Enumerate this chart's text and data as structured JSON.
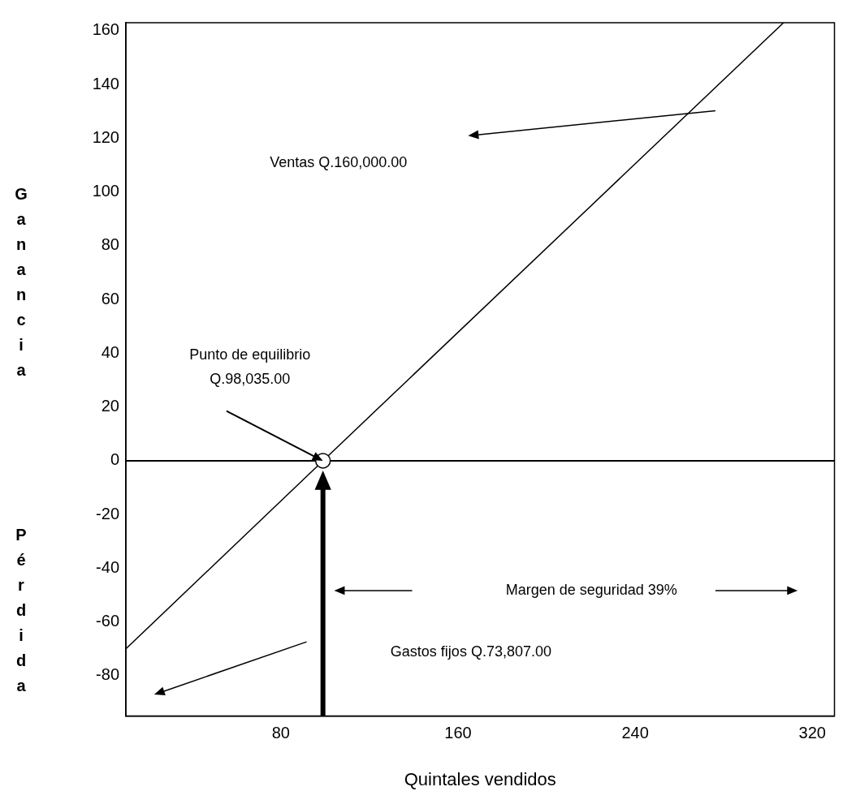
{
  "chart_data": {
    "type": "line",
    "xlabel": "Quintales vendidos",
    "ylabel": "Ganancia",
    "xlim": [
      10,
      330
    ],
    "xticks": [
      80,
      160,
      240,
      320
    ],
    "ylim": [
      -95,
      163
    ],
    "yticks": [
      -80,
      -60,
      -40,
      -20,
      0,
      20,
      40,
      60,
      80,
      100,
      120,
      140,
      160
    ],
    "grid": false,
    "legend": false,
    "series": [
      {
        "type": "line",
        "x": [
          10,
          99,
          307
        ],
        "values": [
          -70,
          0,
          163
        ],
        "color": "#000000",
        "marker": "none"
      },
      {
        "type": "scatter",
        "x": [
          99
        ],
        "values": [
          0
        ],
        "color": "#000000",
        "marker": "circle"
      }
    ],
    "ref_lines": [
      {
        "axis": "y",
        "value": 0,
        "color": "#000000"
      }
    ],
    "annotations": [
      "Ventas Q.160,000.00",
      "Punto de equilibrio\nQ.98,035.00",
      "Margen de seguridad 39%",
      "Gastos fijos Q.73,807.00",
      "Pérdida"
    ]
  }
}
